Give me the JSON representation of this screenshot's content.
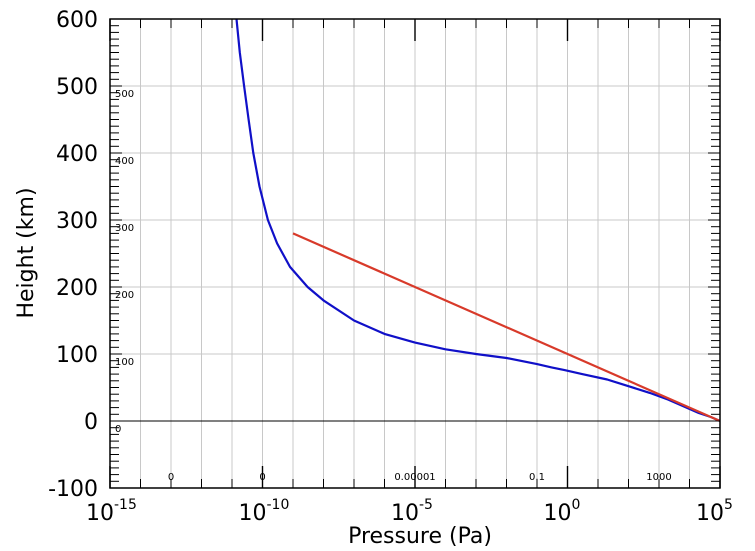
{
  "chart_data": {
    "type": "line",
    "xlabel": "Pressure (Pa)",
    "ylabel": "Height (km)",
    "x_scale": "log",
    "xlim": [
      1e-15,
      100000
    ],
    "ylim": [
      -100,
      600
    ],
    "grid": true,
    "x_ticks": [
      {
        "base": "10",
        "exp": "-15"
      },
      {
        "base": "10",
        "exp": "-10"
      },
      {
        "base": "10",
        "exp": "-5"
      },
      {
        "base": "10",
        "exp": "0"
      },
      {
        "base": "10",
        "exp": "5"
      }
    ],
    "y_ticks": [
      "600",
      "500",
      "400",
      "300",
      "200",
      "100",
      "0",
      "-100"
    ],
    "inner_y_labels": [
      "500",
      "400",
      "300",
      "200",
      "100",
      "0"
    ],
    "inner_x_labels": [
      {
        "text": "0",
        "x": 1e-13
      },
      {
        "text": "0",
        "x": 1e-10
      },
      {
        "text": "0.00001",
        "x": 1e-05
      },
      {
        "text": "0.1",
        "x": 0.1
      },
      {
        "text": "1000",
        "x": 1000
      }
    ],
    "series": [
      {
        "color": "#1010c8",
        "points": [
          [
            100000,
            0
          ],
          [
            50000,
            6
          ],
          [
            20000,
            12
          ],
          [
            8000,
            20
          ],
          [
            2000,
            32
          ],
          [
            500,
            42
          ],
          [
            100,
            52
          ],
          [
            20,
            62
          ],
          [
            3,
            70
          ],
          [
            0.8,
            76
          ],
          [
            0.3,
            80
          ],
          [
            0.1,
            85
          ],
          [
            0.01,
            94
          ],
          [
            0.001,
            100
          ],
          [
            0.0001,
            107
          ],
          [
            1e-05,
            117
          ],
          [
            1e-06,
            130
          ],
          [
            1e-07,
            150
          ],
          [
            1e-08,
            180
          ],
          [
            3e-09,
            200
          ],
          [
            8e-10,
            230
          ],
          [
            3e-10,
            265
          ],
          [
            1.5e-10,
            300
          ],
          [
            8e-11,
            350
          ],
          [
            5e-11,
            400
          ],
          [
            3.5e-11,
            450
          ],
          [
            2.5e-11,
            500
          ],
          [
            1.8e-11,
            550
          ],
          [
            1.4e-11,
            600
          ]
        ]
      },
      {
        "color": "#d83a2a",
        "points": [
          [
            100000,
            0
          ],
          [
            1e-09,
            280
          ]
        ]
      }
    ]
  }
}
